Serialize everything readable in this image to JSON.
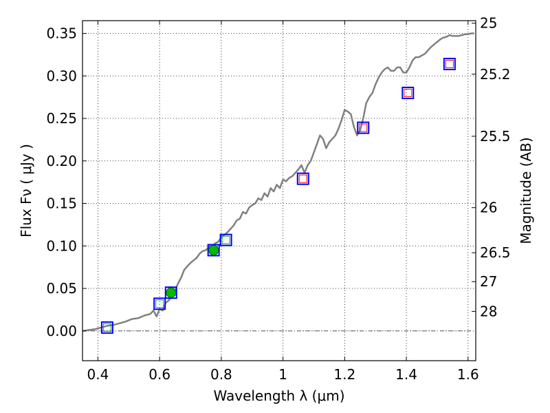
{
  "chart_data": {
    "type": "scatter",
    "xlabel": "Wavelength  λ (μm)",
    "ylabel": "Flux  Fν  ( μJy )",
    "y2label": "Magnitude (AB)",
    "xlim": [
      0.35,
      1.625
    ],
    "ylim": [
      -0.035,
      0.365
    ],
    "grid": true,
    "x_ticks": [
      {
        "value": 0.4,
        "label": "0.4"
      },
      {
        "value": 0.6,
        "label": "0.6"
      },
      {
        "value": 0.8,
        "label": "0.8"
      },
      {
        "value": 1.0,
        "label": "1"
      },
      {
        "value": 1.2,
        "label": "1.2"
      },
      {
        "value": 1.4,
        "label": "1.4"
      },
      {
        "value": 1.6,
        "label": "1.6"
      }
    ],
    "y_ticks": [
      {
        "value": 0.0,
        "label": "0.00"
      },
      {
        "value": 0.05,
        "label": "0.05"
      },
      {
        "value": 0.1,
        "label": "0.10"
      },
      {
        "value": 0.15,
        "label": "0.15"
      },
      {
        "value": 0.2,
        "label": "0.20"
      },
      {
        "value": 0.25,
        "label": "0.25"
      },
      {
        "value": 0.3,
        "label": "0.30"
      },
      {
        "value": 0.35,
        "label": "0.35"
      }
    ],
    "y2_ticks": [
      {
        "flux": 0.362,
        "label": "25"
      },
      {
        "flux": 0.302,
        "label": "25.2"
      },
      {
        "flux": 0.229,
        "label": "25.5"
      },
      {
        "flux": 0.145,
        "label": "26"
      },
      {
        "flux": 0.092,
        "label": "26.5"
      },
      {
        "flux": 0.058,
        "label": "27"
      },
      {
        "flux": 0.023,
        "label": "28"
      }
    ],
    "series": [
      {
        "kind": "line",
        "color": "#808080",
        "x": [
          0.35,
          0.37,
          0.39,
          0.41,
          0.43,
          0.45,
          0.47,
          0.49,
          0.51,
          0.53,
          0.55,
          0.57,
          0.58,
          0.59,
          0.6,
          0.61,
          0.62,
          0.63,
          0.64,
          0.65,
          0.66,
          0.67,
          0.68,
          0.69,
          0.7,
          0.71,
          0.72,
          0.73,
          0.74,
          0.75,
          0.76,
          0.77,
          0.78,
          0.79,
          0.8,
          0.81,
          0.82,
          0.83,
          0.84,
          0.85,
          0.86,
          0.87,
          0.88,
          0.89,
          0.9,
          0.91,
          0.92,
          0.93,
          0.94,
          0.95,
          0.96,
          0.97,
          0.98,
          0.99,
          1.0,
          1.01,
          1.02,
          1.03,
          1.04,
          1.05,
          1.06,
          1.07,
          1.08,
          1.09,
          1.1,
          1.11,
          1.12,
          1.13,
          1.14,
          1.15,
          1.16,
          1.17,
          1.18,
          1.19,
          1.2,
          1.21,
          1.22,
          1.23,
          1.24,
          1.25,
          1.26,
          1.27,
          1.28,
          1.29,
          1.3,
          1.31,
          1.32,
          1.33,
          1.34,
          1.35,
          1.36,
          1.37,
          1.38,
          1.39,
          1.4,
          1.41,
          1.42,
          1.43,
          1.44,
          1.45,
          1.46,
          1.47,
          1.48,
          1.49,
          1.5,
          1.51,
          1.52,
          1.53,
          1.54,
          1.55,
          1.56,
          1.57,
          1.58,
          1.59,
          1.6,
          1.61,
          1.62
        ],
        "y": [
          0.0,
          0.001,
          0.002,
          0.004,
          0.006,
          0.007,
          0.009,
          0.011,
          0.014,
          0.015,
          0.018,
          0.02,
          0.024,
          0.017,
          0.026,
          0.024,
          0.033,
          0.036,
          0.042,
          0.048,
          0.056,
          0.063,
          0.072,
          0.076,
          0.08,
          0.083,
          0.086,
          0.091,
          0.094,
          0.095,
          0.099,
          0.1,
          0.103,
          0.105,
          0.11,
          0.113,
          0.116,
          0.12,
          0.124,
          0.13,
          0.132,
          0.14,
          0.138,
          0.145,
          0.148,
          0.15,
          0.156,
          0.154,
          0.162,
          0.158,
          0.168,
          0.164,
          0.172,
          0.168,
          0.178,
          0.176,
          0.18,
          0.182,
          0.186,
          0.19,
          0.195,
          0.186,
          0.195,
          0.2,
          0.21,
          0.22,
          0.23,
          0.226,
          0.215,
          0.222,
          0.226,
          0.23,
          0.238,
          0.248,
          0.26,
          0.258,
          0.255,
          0.24,
          0.23,
          0.236,
          0.25,
          0.268,
          0.275,
          0.28,
          0.29,
          0.298,
          0.304,
          0.308,
          0.31,
          0.306,
          0.306,
          0.31,
          0.31,
          0.304,
          0.304,
          0.31,
          0.318,
          0.322,
          0.322,
          0.324,
          0.326,
          0.33,
          0.334,
          0.337,
          0.34,
          0.343,
          0.345,
          0.346,
          0.348,
          0.347,
          0.347,
          0.347,
          0.348,
          0.349,
          0.349,
          0.35,
          0.35
        ]
      },
      {
        "kind": "square-outline",
        "color": "#0000ff",
        "x": [
          0.43,
          0.6,
          0.637,
          0.775,
          0.815,
          1.065,
          1.26,
          1.405,
          1.54
        ],
        "y": [
          0.004,
          0.032,
          0.045,
          0.095,
          0.107,
          0.179,
          0.239,
          0.28,
          0.314
        ]
      },
      {
        "kind": "square-small",
        "color": "#00aa00",
        "x": [
          0.43,
          0.6,
          0.775,
          0.815
        ],
        "y": [
          0.004,
          0.032,
          0.095,
          0.107
        ]
      },
      {
        "kind": "square-small",
        "color": "#ff0000",
        "x": [
          1.065,
          1.26,
          1.405,
          1.54
        ],
        "y": [
          0.179,
          0.239,
          0.28,
          0.314
        ]
      },
      {
        "kind": "filled-circle",
        "color": "#00bb00",
        "x": [
          0.637,
          0.775
        ],
        "y": [
          0.045,
          0.095
        ]
      }
    ]
  }
}
